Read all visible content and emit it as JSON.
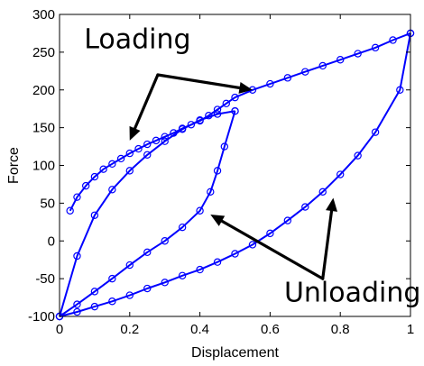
{
  "chart_data": {
    "type": "line",
    "title": "",
    "xlabel": "Displacement",
    "ylabel": "Force",
    "xlim": [
      0,
      1
    ],
    "ylim": [
      -100,
      300
    ],
    "xticks": [
      "0",
      "0.2",
      "0.4",
      "0.6",
      "0.8",
      "1"
    ],
    "yticks": [
      "-100",
      "-50",
      "0",
      "50",
      "100",
      "150",
      "200",
      "250",
      "300"
    ],
    "grid": false,
    "legend": "none",
    "line_color": "#0000ff",
    "series": [
      {
        "x": [
          0,
          0.05,
          0.1,
          0.15,
          0.2,
          0.25,
          0.3,
          0.35,
          0.4,
          0.45,
          0.5
        ],
        "y": [
          -100,
          -20,
          34,
          68,
          93,
          114,
          132,
          148,
          160,
          168,
          172
        ]
      },
      {
        "x": [
          0.5,
          0.47,
          0.45,
          0.43,
          0.4,
          0.35,
          0.3,
          0.25,
          0.2,
          0.15,
          0.1,
          0.05,
          0
        ],
        "y": [
          172,
          125,
          93,
          65,
          40,
          18,
          0,
          -15,
          -32,
          -50,
          -67,
          -84,
          -100
        ]
      },
      {
        "x": [
          0.03,
          0.05,
          0.075,
          0.1,
          0.125,
          0.15,
          0.175,
          0.2,
          0.225,
          0.25,
          0.275,
          0.3,
          0.325,
          0.35,
          0.375,
          0.4,
          0.425,
          0.45,
          0.475,
          0.5,
          0.55,
          0.6,
          0.65,
          0.7,
          0.75,
          0.8,
          0.85,
          0.9,
          0.95,
          1.0
        ],
        "y": [
          40,
          58,
          73,
          85,
          95,
          102,
          109,
          116,
          122,
          128,
          133,
          138,
          143,
          149,
          154,
          159,
          166,
          174,
          182,
          190,
          200,
          208,
          216,
          224,
          232,
          240,
          248,
          256,
          266,
          275
        ]
      },
      {
        "x": [
          1.0,
          0.97,
          0.9,
          0.85,
          0.8,
          0.75,
          0.7,
          0.65,
          0.6,
          0.55,
          0.5,
          0.45,
          0.4,
          0.35,
          0.3,
          0.25,
          0.2,
          0.15,
          0.1,
          0.05,
          0
        ],
        "y": [
          275,
          200,
          144,
          113,
          88,
          65,
          45,
          27,
          10,
          -5,
          -17,
          -28,
          -38,
          -46,
          -55,
          -63,
          -72,
          -80,
          -87,
          -94,
          -100
        ]
      }
    ],
    "annotations": [
      {
        "text": "Loading",
        "label_at": [
          0.07,
          255
        ],
        "arrows": [
          {
            "from": [
              0.28,
              220
            ],
            "to": [
              0.2,
              133
            ]
          },
          {
            "from": [
              0.28,
              220
            ],
            "to": [
              0.55,
              200
            ]
          }
        ]
      },
      {
        "text": "Unloading",
        "label_at": [
          0.64,
          -80
        ],
        "arrows": [
          {
            "from": [
              0.75,
              -50
            ],
            "to": [
              0.43,
              35
            ]
          },
          {
            "from": [
              0.75,
              -50
            ],
            "to": [
              0.78,
              57
            ]
          }
        ]
      }
    ]
  }
}
